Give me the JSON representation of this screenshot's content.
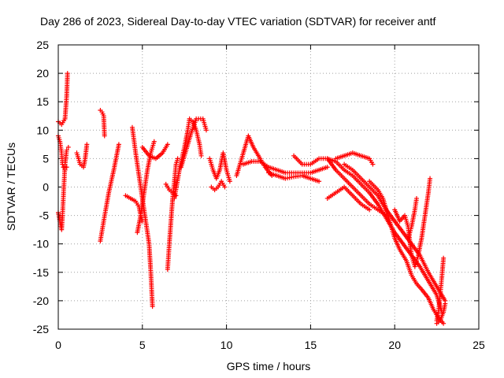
{
  "chart_data": {
    "type": "scatter",
    "title": "Day 286 of 2023, Sidereal Day-to-day VTEC variation (SDTVAR) for receiver antf",
    "xlabel": "GPS time / hours",
    "ylabel": "SDTVAR / TECUs",
    "xlim": [
      0,
      25
    ],
    "ylim": [
      -25,
      25
    ],
    "xticks": [
      0,
      5,
      10,
      15,
      20,
      25
    ],
    "yticks": [
      -25,
      -20,
      -15,
      -10,
      -5,
      0,
      5,
      10,
      15,
      20,
      25
    ],
    "xtick_labels": [
      "0",
      "5",
      "10",
      "15",
      "20",
      "25"
    ],
    "ytick_labels": [
      "-25",
      "-20",
      "-15",
      "-10",
      "-5",
      "0",
      "5",
      "10",
      "15",
      "20",
      "25"
    ],
    "grid": true,
    "marker": "+",
    "color": "#ff0000",
    "series": [
      {
        "name": "s1",
        "points": [
          [
            0.0,
            9
          ],
          [
            0.1,
            8
          ],
          [
            0.2,
            6
          ],
          [
            0.25,
            4
          ],
          [
            0.3,
            3.5
          ],
          [
            0.4,
            3
          ],
          [
            0.5,
            3.5
          ]
        ]
      },
      {
        "name": "s2",
        "points": [
          [
            0.0,
            11.5
          ],
          [
            0.2,
            11
          ],
          [
            0.4,
            12
          ],
          [
            0.5,
            16
          ],
          [
            0.55,
            20
          ]
        ]
      },
      {
        "name": "s3",
        "points": [
          [
            0.0,
            -4.5
          ],
          [
            0.1,
            -6
          ],
          [
            0.2,
            -7.5
          ],
          [
            0.25,
            -5
          ],
          [
            0.3,
            -2
          ],
          [
            0.35,
            1
          ],
          [
            0.4,
            4
          ],
          [
            0.5,
            6.5
          ],
          [
            0.6,
            7
          ]
        ]
      },
      {
        "name": "s4",
        "points": [
          [
            1.1,
            6
          ],
          [
            1.3,
            4
          ],
          [
            1.5,
            3.5
          ],
          [
            1.6,
            5
          ],
          [
            1.7,
            7.5
          ]
        ]
      },
      {
        "name": "s5",
        "points": [
          [
            2.5,
            13.5
          ],
          [
            2.6,
            13.2
          ],
          [
            2.7,
            12.5
          ],
          [
            2.75,
            9
          ]
        ]
      },
      {
        "name": "s6",
        "points": [
          [
            2.5,
            -9.5
          ],
          [
            2.7,
            -6
          ],
          [
            3.0,
            -1
          ],
          [
            3.3,
            3
          ],
          [
            3.6,
            7.5
          ]
        ]
      },
      {
        "name": "s7",
        "points": [
          [
            4.0,
            -1.5
          ],
          [
            4.3,
            -2
          ],
          [
            4.6,
            -2.5
          ],
          [
            4.8,
            -3.5
          ],
          [
            4.9,
            -5
          ],
          [
            5.0,
            -6
          ]
        ]
      },
      {
        "name": "s8",
        "points": [
          [
            4.4,
            10.5
          ],
          [
            4.6,
            6
          ],
          [
            4.8,
            2
          ],
          [
            5.0,
            -2
          ],
          [
            5.2,
            -6
          ],
          [
            5.4,
            -10
          ],
          [
            5.5,
            -15
          ],
          [
            5.6,
            -21
          ]
        ]
      },
      {
        "name": "s9",
        "points": [
          [
            4.7,
            -8
          ],
          [
            4.9,
            -5
          ],
          [
            5.1,
            -1
          ],
          [
            5.3,
            3
          ],
          [
            5.5,
            6
          ],
          [
            5.7,
            8
          ]
        ]
      },
      {
        "name": "s10",
        "points": [
          [
            5.0,
            7
          ],
          [
            5.4,
            5.5
          ],
          [
            5.8,
            5
          ],
          [
            6.2,
            6
          ],
          [
            6.5,
            7.5
          ]
        ]
      },
      {
        "name": "s11",
        "points": [
          [
            6.5,
            -14.5
          ],
          [
            6.6,
            -10
          ],
          [
            6.7,
            -6
          ],
          [
            6.8,
            -2
          ],
          [
            6.9,
            1
          ],
          [
            7.0,
            4
          ],
          [
            7.1,
            5
          ]
        ]
      },
      {
        "name": "s12",
        "points": [
          [
            6.4,
            0.5
          ],
          [
            6.6,
            -0.5
          ],
          [
            6.8,
            -1
          ],
          [
            7.0,
            -1.5
          ]
        ]
      },
      {
        "name": "s13",
        "points": [
          [
            6.9,
            -2
          ],
          [
            7.2,
            3
          ],
          [
            7.5,
            7
          ],
          [
            7.7,
            10
          ],
          [
            7.8,
            12
          ],
          [
            8.0,
            11.5
          ],
          [
            8.2,
            10
          ],
          [
            8.4,
            7.5
          ],
          [
            8.5,
            5.5
          ]
        ]
      },
      {
        "name": "s14",
        "points": [
          [
            7.3,
            3.5
          ],
          [
            7.6,
            6.5
          ],
          [
            7.9,
            9.5
          ],
          [
            8.2,
            12
          ],
          [
            8.6,
            12
          ],
          [
            8.8,
            10
          ]
        ]
      },
      {
        "name": "s15",
        "points": [
          [
            9.0,
            5
          ],
          [
            9.2,
            3
          ],
          [
            9.4,
            1.5
          ],
          [
            9.6,
            3
          ],
          [
            9.8,
            6
          ],
          [
            10.0,
            3
          ],
          [
            10.2,
            1
          ]
        ]
      },
      {
        "name": "s16",
        "points": [
          [
            9.1,
            0
          ],
          [
            9.3,
            -0.5
          ],
          [
            9.5,
            0
          ],
          [
            9.7,
            1
          ],
          [
            9.9,
            0
          ]
        ]
      },
      {
        "name": "s17",
        "points": [
          [
            10.6,
            2
          ],
          [
            11.0,
            6
          ],
          [
            11.3,
            9
          ],
          [
            11.6,
            7
          ],
          [
            12.0,
            5
          ],
          [
            12.3,
            3.5
          ],
          [
            12.7,
            2
          ]
        ]
      },
      {
        "name": "s18",
        "points": [
          [
            11.0,
            4
          ],
          [
            11.5,
            4.5
          ],
          [
            12.0,
            4.5
          ],
          [
            12.5,
            3.5
          ],
          [
            13.0,
            3
          ],
          [
            13.5,
            2.5
          ],
          [
            14.0,
            2.5
          ],
          [
            14.5,
            2.5
          ],
          [
            15.0,
            2.5
          ],
          [
            15.5,
            3
          ],
          [
            16.0,
            3.5
          ]
        ]
      },
      {
        "name": "s19",
        "points": [
          [
            12.5,
            2.5
          ],
          [
            13.0,
            2
          ],
          [
            13.5,
            1.5
          ],
          [
            14.0,
            1.8
          ],
          [
            14.5,
            2
          ],
          [
            15.0,
            1.5
          ],
          [
            15.5,
            1
          ]
        ]
      },
      {
        "name": "s20",
        "points": [
          [
            14.0,
            5.5
          ],
          [
            14.5,
            4
          ],
          [
            15.0,
            4
          ],
          [
            15.5,
            5
          ],
          [
            16.0,
            5
          ],
          [
            16.5,
            3
          ],
          [
            17.0,
            1.5
          ],
          [
            17.5,
            0
          ],
          [
            18.0,
            -1.5
          ],
          [
            18.5,
            -3
          ],
          [
            19.0,
            -4
          ],
          [
            19.5,
            -5
          ]
        ]
      },
      {
        "name": "s21",
        "points": [
          [
            16.0,
            -2
          ],
          [
            16.5,
            -1
          ],
          [
            17.0,
            0
          ],
          [
            17.5,
            -1.5
          ],
          [
            18.0,
            -3
          ],
          [
            18.5,
            -4
          ]
        ]
      },
      {
        "name": "s22",
        "points": [
          [
            16.5,
            5
          ],
          [
            17.0,
            5.5
          ],
          [
            17.5,
            6
          ],
          [
            18.0,
            5.5
          ],
          [
            18.5,
            5
          ],
          [
            18.7,
            4
          ]
        ]
      },
      {
        "name": "s23",
        "points": [
          [
            16.0,
            5
          ],
          [
            16.5,
            4.5
          ],
          [
            17.0,
            3
          ],
          [
            17.5,
            2
          ],
          [
            18.0,
            0.5
          ],
          [
            18.5,
            -1
          ],
          [
            19.0,
            -3
          ],
          [
            19.5,
            -5.5
          ],
          [
            20.0,
            -8
          ],
          [
            20.5,
            -10
          ],
          [
            21.0,
            -12
          ],
          [
            21.5,
            -14
          ],
          [
            22.0,
            -16.5
          ],
          [
            22.5,
            -19
          ],
          [
            22.8,
            -22
          ]
        ]
      },
      {
        "name": "s24",
        "points": [
          [
            17.0,
            4
          ],
          [
            17.5,
            3
          ],
          [
            18.0,
            1.5
          ],
          [
            18.5,
            0
          ],
          [
            19.0,
            -1.5
          ],
          [
            19.5,
            -4
          ],
          [
            20.0,
            -6
          ],
          [
            20.5,
            -8
          ],
          [
            21.0,
            -10
          ],
          [
            21.5,
            -12
          ],
          [
            22.0,
            -15
          ],
          [
            22.5,
            -17.5
          ],
          [
            23.0,
            -20
          ]
        ]
      },
      {
        "name": "s25",
        "points": [
          [
            18.5,
            1
          ],
          [
            19.0,
            -0.5
          ],
          [
            19.3,
            -2
          ],
          [
            19.6,
            -5
          ],
          [
            20.0,
            -9
          ],
          [
            20.3,
            -11
          ],
          [
            20.7,
            -13
          ],
          [
            21.0,
            -15.5
          ],
          [
            21.3,
            -17
          ],
          [
            21.6,
            -18
          ],
          [
            22.0,
            -19.5
          ],
          [
            22.3,
            -21.5
          ],
          [
            22.6,
            -23
          ],
          [
            22.9,
            -24
          ]
        ]
      },
      {
        "name": "s26",
        "points": [
          [
            20.0,
            -4
          ],
          [
            20.3,
            -6
          ],
          [
            20.6,
            -5
          ],
          [
            20.8,
            -7
          ],
          [
            21.0,
            -12
          ],
          [
            21.2,
            -14
          ],
          [
            21.4,
            -12
          ],
          [
            21.6,
            -9
          ],
          [
            21.8,
            -5
          ],
          [
            22.0,
            -1
          ],
          [
            22.1,
            1.5
          ]
        ]
      },
      {
        "name": "s27",
        "points": [
          [
            20.8,
            -9
          ],
          [
            21.0,
            -7
          ],
          [
            21.2,
            -4
          ],
          [
            21.3,
            -2
          ]
        ]
      },
      {
        "name": "s28",
        "points": [
          [
            22.5,
            -23.5
          ],
          [
            22.6,
            -22
          ],
          [
            22.7,
            -19
          ],
          [
            22.8,
            -16
          ],
          [
            22.9,
            -12.5
          ]
        ]
      },
      {
        "name": "s29",
        "points": [
          [
            22.5,
            -24
          ],
          [
            22.7,
            -23.5
          ],
          [
            22.9,
            -22
          ],
          [
            23.0,
            -20.5
          ]
        ]
      }
    ]
  }
}
